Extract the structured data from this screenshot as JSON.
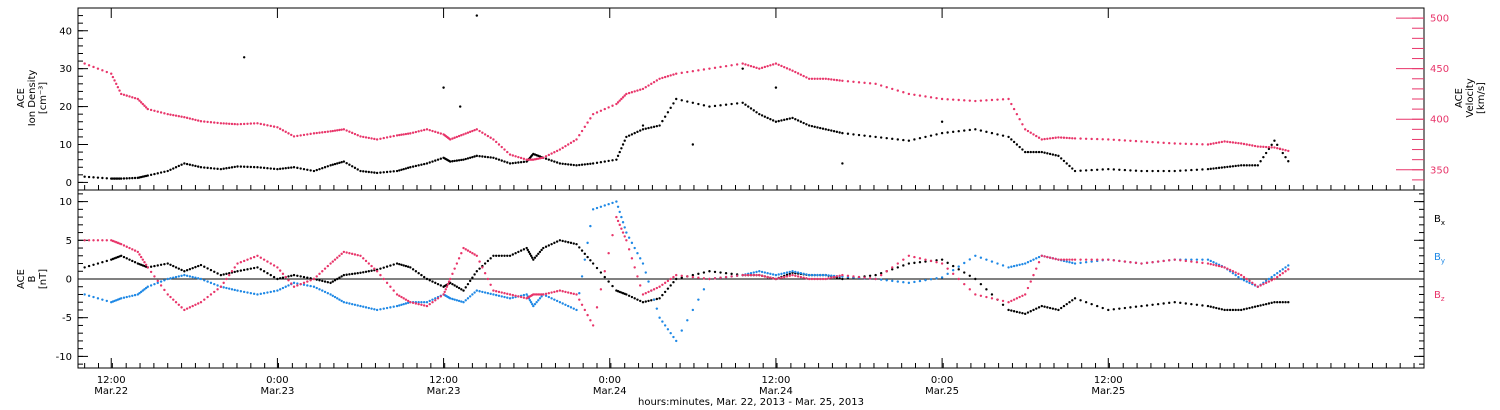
{
  "chart_data": [
    {
      "type": "scatter",
      "panel": "top",
      "ylabel_left": [
        "ACE",
        "Ion Density",
        "[cm⁻³]"
      ],
      "ylabel_right": [
        "ACE",
        "Velocity",
        "[km/s]"
      ],
      "ylim_left": [
        -2,
        46
      ],
      "ylim_right": [
        330,
        510
      ],
      "yticks_left": [
        "0",
        "10",
        "20",
        "30",
        "40"
      ],
      "yticks_right": [
        "350",
        "400",
        "450",
        "500"
      ],
      "colors": {
        "density": "#000000",
        "velocity": "#e8356a"
      },
      "series": [
        {
          "axis": "left",
          "color": "#000000",
          "x": [
            -0.08,
            0.0,
            0.03,
            0.08,
            0.11,
            0.17,
            0.22,
            0.27,
            0.33,
            0.38,
            0.44,
            0.5,
            0.55,
            0.61,
            0.66,
            0.7,
            0.75,
            0.8,
            0.86,
            0.9,
            0.95,
            1.0,
            1.02,
            1.06,
            1.1,
            1.15,
            1.2,
            1.25,
            1.27,
            1.3,
            1.35,
            1.4,
            1.45,
            1.52,
            1.55,
            1.6,
            1.65,
            1.7,
            1.8,
            1.9,
            1.95,
            2.0,
            2.05,
            2.1,
            2.15,
            2.2,
            2.3,
            2.4,
            2.5,
            2.6,
            2.7,
            2.75,
            2.8,
            2.85,
            2.9,
            3.0,
            3.1,
            3.2,
            3.3,
            3.35,
            3.4,
            3.45,
            3.5,
            3.55
          ],
          "y": [
            1.5,
            1.0,
            1.0,
            1.2,
            1.8,
            3.0,
            5.0,
            4.0,
            3.5,
            4.2,
            4.0,
            3.5,
            4.0,
            3.0,
            4.5,
            5.5,
            3.0,
            2.5,
            3.0,
            4.0,
            5.0,
            6.5,
            5.5,
            6.0,
            7.0,
            6.5,
            5.0,
            5.5,
            7.5,
            6.5,
            5.0,
            4.5,
            5.0,
            6.0,
            12.0,
            14.0,
            15.0,
            22.0,
            20.0,
            21.0,
            18.0,
            16.0,
            17.0,
            15.0,
            14.0,
            13.0,
            12.0,
            11.0,
            13.0,
            14.0,
            12.0,
            8.0,
            8.0,
            7.0,
            3.0,
            3.5,
            3.0,
            3.0,
            3.5,
            4.0,
            4.5,
            4.5,
            11.0,
            4.5
          ],
          "scatter": [
            [
              1.1,
              44
            ],
            [
              0.4,
              33
            ],
            [
              1.0,
              25
            ],
            [
              1.05,
              20
            ],
            [
              1.9,
              30
            ],
            [
              1.6,
              15
            ],
            [
              2.0,
              25
            ],
            [
              2.2,
              5
            ],
            [
              2.5,
              16
            ],
            [
              1.75,
              10
            ]
          ]
        },
        {
          "axis": "right",
          "color": "#e8356a",
          "x": [
            -0.08,
            0.0,
            0.03,
            0.08,
            0.11,
            0.17,
            0.22,
            0.27,
            0.33,
            0.38,
            0.44,
            0.5,
            0.55,
            0.61,
            0.66,
            0.7,
            0.75,
            0.8,
            0.86,
            0.9,
            0.95,
            1.0,
            1.02,
            1.06,
            1.1,
            1.15,
            1.2,
            1.25,
            1.27,
            1.3,
            1.35,
            1.4,
            1.45,
            1.52,
            1.55,
            1.6,
            1.65,
            1.7,
            1.8,
            1.9,
            1.95,
            2.0,
            2.05,
            2.1,
            2.15,
            2.2,
            2.3,
            2.4,
            2.5,
            2.6,
            2.7,
            2.75,
            2.8,
            2.85,
            2.9,
            3.0,
            3.1,
            3.2,
            3.3,
            3.35,
            3.4,
            3.45,
            3.5,
            3.55
          ],
          "y": [
            455,
            445,
            425,
            420,
            410,
            405,
            402,
            398,
            396,
            395,
            396,
            392,
            383,
            386,
            388,
            390,
            383,
            380,
            384,
            386,
            390,
            385,
            380,
            385,
            390,
            380,
            365,
            360,
            360,
            362,
            370,
            380,
            405,
            415,
            425,
            430,
            440,
            445,
            450,
            455,
            450,
            455,
            448,
            440,
            440,
            438,
            435,
            425,
            420,
            418,
            420,
            390,
            380,
            382,
            381,
            380,
            378,
            376,
            375,
            378,
            376,
            373,
            372,
            368
          ]
        }
      ]
    },
    {
      "type": "scatter",
      "panel": "bottom",
      "ylabel": [
        "ACE",
        "B",
        "[nT]"
      ],
      "ylim": [
        -11.5,
        11.5
      ],
      "yticks": [
        "10",
        "5",
        "0",
        "-5",
        "-10"
      ],
      "legend": [
        "Bx",
        "By",
        "Bz"
      ],
      "legend_position": "right",
      "colors": {
        "Bx": "#000000",
        "By": "#1e88e5",
        "Bz": "#e8356a"
      },
      "series": [
        {
          "name": "Bx",
          "color": "#000000",
          "x": [
            -0.08,
            0.0,
            0.03,
            0.08,
            0.11,
            0.17,
            0.22,
            0.27,
            0.33,
            0.38,
            0.44,
            0.5,
            0.55,
            0.61,
            0.66,
            0.7,
            0.75,
            0.8,
            0.86,
            0.9,
            0.95,
            1.0,
            1.02,
            1.06,
            1.1,
            1.15,
            1.2,
            1.25,
            1.27,
            1.3,
            1.35,
            1.4,
            1.45,
            1.52,
            1.55,
            1.6,
            1.65,
            1.7,
            1.8,
            1.9,
            1.95,
            2.0,
            2.05,
            2.1,
            2.15,
            2.2,
            2.3,
            2.4,
            2.5,
            2.6,
            2.7,
            2.75,
            2.8,
            2.85,
            2.9,
            3.0,
            3.1,
            3.2,
            3.3,
            3.35,
            3.4,
            3.45,
            3.5,
            3.55
          ],
          "y": [
            1.5,
            2.5,
            3.0,
            2.0,
            1.5,
            2.0,
            1.0,
            1.8,
            0.5,
            1.0,
            1.5,
            0.0,
            0.5,
            0.0,
            -0.5,
            0.5,
            0.8,
            1.2,
            2.0,
            1.5,
            0.0,
            -1.0,
            -0.5,
            -1.5,
            1.0,
            3.0,
            3.0,
            4.0,
            2.5,
            4.0,
            5.0,
            4.5,
            2.0,
            -1.5,
            -2.0,
            -3.0,
            -2.5,
            0.0,
            1.0,
            0.5,
            0.5,
            0.0,
            0.8,
            0.5,
            0.5,
            0.0,
            0.5,
            2.0,
            2.5,
            0.0,
            -4.0,
            -4.5,
            -3.5,
            -4.0,
            -2.5,
            -4.0,
            -3.5,
            -3.0,
            -3.5,
            -4.0,
            -4.0,
            -3.5,
            -3.0,
            -3.0
          ]
        },
        {
          "name": "By",
          "color": "#1e88e5",
          "x": [
            -0.08,
            0.0,
            0.03,
            0.08,
            0.11,
            0.17,
            0.22,
            0.27,
            0.33,
            0.38,
            0.44,
            0.5,
            0.55,
            0.61,
            0.66,
            0.7,
            0.75,
            0.8,
            0.86,
            0.9,
            0.95,
            1.0,
            1.02,
            1.06,
            1.1,
            1.15,
            1.2,
            1.25,
            1.27,
            1.3,
            1.35,
            1.4,
            1.45,
            1.52,
            1.55,
            1.6,
            1.65,
            1.7,
            1.8,
            1.9,
            1.95,
            2.0,
            2.05,
            2.1,
            2.15,
            2.2,
            2.3,
            2.4,
            2.5,
            2.6,
            2.7,
            2.75,
            2.8,
            2.85,
            2.9,
            3.0,
            3.1,
            3.2,
            3.3,
            3.35,
            3.4,
            3.45,
            3.5,
            3.55
          ],
          "y": [
            -2.0,
            -3.0,
            -2.5,
            -2.0,
            -1.0,
            0.0,
            0.5,
            0.0,
            -1.0,
            -1.5,
            -2.0,
            -1.5,
            -0.5,
            -1.0,
            -2.0,
            -3.0,
            -3.5,
            -4.0,
            -3.5,
            -3.0,
            -3.0,
            -2.0,
            -2.5,
            -3.0,
            -1.5,
            -2.0,
            -2.5,
            -2.0,
            -3.5,
            -2.0,
            -3.0,
            -4.0,
            9.0,
            10.0,
            6.0,
            2.0,
            -5.0,
            -8.0,
            0.0,
            0.5,
            1.0,
            0.5,
            1.0,
            0.5,
            0.5,
            0.3,
            0.0,
            -0.5,
            0.2,
            3.0,
            1.5,
            2.0,
            3.0,
            2.5,
            2.0,
            2.5,
            2.0,
            2.5,
            2.5,
            1.5,
            0.0,
            -1.0,
            0.5,
            2.0
          ]
        },
        {
          "name": "Bz",
          "color": "#e8356a",
          "x": [
            -0.08,
            0.0,
            0.03,
            0.08,
            0.11,
            0.17,
            0.22,
            0.27,
            0.33,
            0.38,
            0.44,
            0.5,
            0.55,
            0.61,
            0.66,
            0.7,
            0.75,
            0.8,
            0.86,
            0.9,
            0.95,
            1.0,
            1.02,
            1.06,
            1.1,
            1.15,
            1.2,
            1.25,
            1.27,
            1.3,
            1.35,
            1.4,
            1.45,
            1.52,
            1.55,
            1.6,
            1.65,
            1.7,
            1.8,
            1.9,
            1.95,
            2.0,
            2.05,
            2.1,
            2.15,
            2.2,
            2.3,
            2.4,
            2.5,
            2.6,
            2.7,
            2.75,
            2.8,
            2.85,
            2.9,
            3.0,
            3.1,
            3.2,
            3.3,
            3.35,
            3.4,
            3.45,
            3.5,
            3.55
          ],
          "y": [
            5.0,
            5.0,
            4.5,
            3.5,
            1.5,
            -2.0,
            -4.0,
            -3.0,
            -1.0,
            2.0,
            3.0,
            1.5,
            -1.0,
            0.0,
            2.0,
            3.5,
            3.0,
            1.0,
            -2.0,
            -3.0,
            -3.5,
            -2.0,
            0.0,
            4.0,
            3.0,
            -1.5,
            -2.0,
            -2.5,
            -2.0,
            -2.0,
            -1.5,
            -2.0,
            -6.0,
            8.0,
            5.0,
            -2.0,
            -1.0,
            0.5,
            0.0,
            0.5,
            0.5,
            0.0,
            0.5,
            0.0,
            0.0,
            0.5,
            0.0,
            3.0,
            2.0,
            -2.0,
            -3.0,
            -2.0,
            3.0,
            2.5,
            2.5,
            2.5,
            2.0,
            2.5,
            2.0,
            1.5,
            0.5,
            -1.0,
            0.0,
            1.5
          ]
        }
      ]
    },
    {
      "type": "axis",
      "panel": "shared-x",
      "xlabel": "hours:minutes, Mar. 22, 2013 - Mar. 25, 2013",
      "xlim": [
        -0.1,
        3.95
      ],
      "xticks": [
        {
          "x": 0.0,
          "time": "12:00",
          "date": "Mar.22"
        },
        {
          "x": 0.5,
          "time": "0:00",
          "date": "Mar.23"
        },
        {
          "x": 1.0,
          "time": "12:00",
          "date": "Mar.23"
        },
        {
          "x": 1.5,
          "time": "0:00",
          "date": "Mar.24"
        },
        {
          "x": 2.0,
          "time": "12:00",
          "date": "Mar.24"
        },
        {
          "x": 2.5,
          "time": "0:00",
          "date": "Mar.25"
        },
        {
          "x": 3.0,
          "time": "12:00",
          "date": "Mar.25"
        }
      ]
    }
  ]
}
